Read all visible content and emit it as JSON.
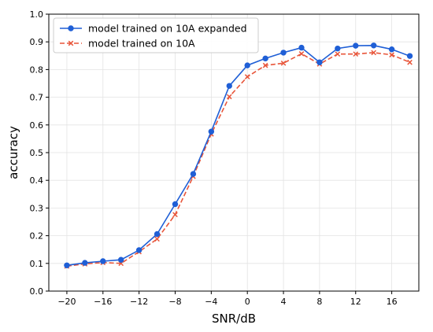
{
  "chart_data": {
    "type": "line",
    "xlabel": "SNR/dB",
    "ylabel": "accuracy",
    "xlim": [
      -22,
      19
    ],
    "ylim": [
      0.0,
      1.0
    ],
    "xticks": [
      -20,
      -16,
      -12,
      -8,
      -4,
      0,
      4,
      8,
      12,
      16
    ],
    "xtick_labels": [
      "−20",
      "−16",
      "−12",
      "−8",
      "−4",
      "0",
      "4",
      "8",
      "12",
      "16"
    ],
    "yticks": [
      0.0,
      0.1,
      0.2,
      0.3,
      0.4,
      0.5,
      0.6,
      0.7,
      0.8,
      0.9,
      1.0
    ],
    "ytick_labels": [
      "0.0",
      "0.1",
      "0.2",
      "0.3",
      "0.4",
      "0.5",
      "0.6",
      "0.7",
      "0.8",
      "0.9",
      "1.0"
    ],
    "grid": true,
    "legend_position": "top-left",
    "x": [
      -20,
      -18,
      -16,
      -14,
      -12,
      -10,
      -8,
      -6,
      -4,
      -2,
      0,
      2,
      4,
      6,
      8,
      10,
      12,
      14,
      16,
      18
    ],
    "series": [
      {
        "name": "model trained on 10A expanded",
        "color": "#1f5fd6",
        "marker": "circle",
        "line_style": "solid",
        "values": [
          0.093,
          0.102,
          0.108,
          0.113,
          0.148,
          0.206,
          0.314,
          0.423,
          0.576,
          0.741,
          0.815,
          0.84,
          0.861,
          0.879,
          0.826,
          0.876,
          0.886,
          0.887,
          0.873,
          0.849
        ]
      },
      {
        "name": "model trained on 10A",
        "color": "#e8553a",
        "marker": "x",
        "line_style": "dashed",
        "values": [
          0.09,
          0.098,
          0.103,
          0.1,
          0.142,
          0.188,
          0.276,
          0.414,
          0.567,
          0.702,
          0.774,
          0.815,
          0.823,
          0.857,
          0.82,
          0.856,
          0.856,
          0.861,
          0.853,
          0.826
        ]
      }
    ]
  }
}
